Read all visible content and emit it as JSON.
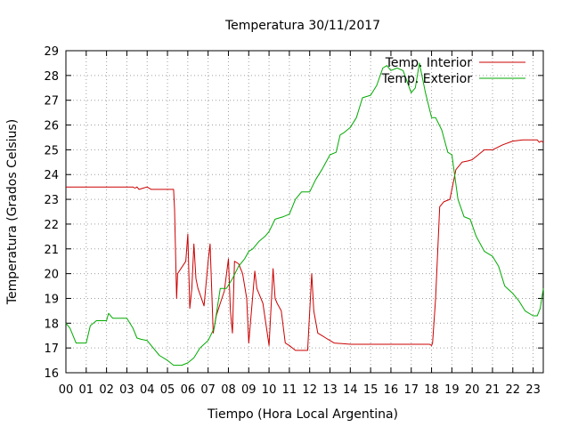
{
  "chart_data": {
    "type": "line",
    "title": "Temperatura 30/11/2017",
    "xlabel": "Tiempo (Hora Local Argentina)",
    "ylabel": "Temperatura (Grados Celsius)",
    "xlim": [
      0,
      23.5
    ],
    "ylim": [
      16,
      29
    ],
    "x_ticks": [
      "00",
      "01",
      "02",
      "03",
      "04",
      "05",
      "06",
      "07",
      "08",
      "09",
      "10",
      "11",
      "12",
      "13",
      "14",
      "15",
      "16",
      "17",
      "18",
      "19",
      "20",
      "21",
      "22",
      "23"
    ],
    "y_ticks": [
      16,
      17,
      18,
      19,
      20,
      21,
      22,
      23,
      24,
      25,
      26,
      27,
      28,
      29
    ],
    "grid": true,
    "legend_position": "top-right",
    "series": [
      {
        "name": "Temp. Interior",
        "color": "#cc0000",
        "x": [
          0,
          3.3,
          3.4,
          3.5,
          3.6,
          3.8,
          4.0,
          4.2,
          4.5,
          5.3,
          5.35,
          5.45,
          5.5,
          5.9,
          6.0,
          6.1,
          6.2,
          6.3,
          6.4,
          6.5,
          6.8,
          7.0,
          7.1,
          7.25,
          7.4,
          7.6,
          7.8,
          8.0,
          8.1,
          8.2,
          8.3,
          8.5,
          8.7,
          8.9,
          9.0,
          9.3,
          9.4,
          9.5,
          9.7,
          10.0,
          10.2,
          10.3,
          10.4,
          10.6,
          10.8,
          11.0,
          11.3,
          11.6,
          11.9,
          12.1,
          12.2,
          12.4,
          12.6,
          12.8,
          13.2,
          14.0,
          15.0,
          16.0,
          17.0,
          17.9,
          18.0,
          18.05,
          18.2,
          18.4,
          18.6,
          18.9,
          19.0,
          19.2,
          19.5,
          19.8,
          20.0,
          20.3,
          20.6,
          21.0,
          21.5,
          22.0,
          22.5,
          23.0,
          23.2,
          23.3,
          23.4,
          23.5
        ],
        "values": [
          23.5,
          23.5,
          23.45,
          23.5,
          23.4,
          23.45,
          23.5,
          23.4,
          23.4,
          23.4,
          22.6,
          19.0,
          20.0,
          20.5,
          21.6,
          18.6,
          19.4,
          21.2,
          19.8,
          19.4,
          18.7,
          20.5,
          21.2,
          17.6,
          18.3,
          18.8,
          19.3,
          20.6,
          18.5,
          17.6,
          20.5,
          20.4,
          20.0,
          19.0,
          17.2,
          20.1,
          19.4,
          19.2,
          18.8,
          17.1,
          20.2,
          19.0,
          18.8,
          18.5,
          17.2,
          17.1,
          16.9,
          16.9,
          16.9,
          20.0,
          18.5,
          17.6,
          17.5,
          17.4,
          17.2,
          17.15,
          17.15,
          17.15,
          17.15,
          17.15,
          17.1,
          17.2,
          19.0,
          22.7,
          22.9,
          23.0,
          23.4,
          24.2,
          24.5,
          24.55,
          24.6,
          24.8,
          25.0,
          25.0,
          25.2,
          25.35,
          25.4,
          25.4,
          25.4,
          25.3,
          25.35,
          25.3
        ]
      },
      {
        "name": "Temp. Exterior",
        "color": "#00aa00",
        "x": [
          0,
          0.2,
          0.5,
          1.0,
          1.2,
          1.5,
          2.0,
          2.1,
          2.3,
          2.7,
          3.0,
          3.3,
          3.5,
          3.7,
          4.0,
          4.3,
          4.6,
          5.0,
          5.3,
          5.7,
          6.0,
          6.3,
          6.6,
          7.0,
          7.3,
          7.6,
          7.9,
          8.2,
          8.5,
          8.8,
          9.0,
          9.2,
          9.5,
          9.8,
          10.0,
          10.3,
          10.7,
          11.0,
          11.3,
          11.6,
          12.0,
          12.3,
          12.6,
          13.0,
          13.3,
          13.5,
          13.7,
          14.0,
          14.3,
          14.6,
          15.0,
          15.3,
          15.6,
          15.8,
          16.0,
          16.3,
          16.6,
          17.0,
          17.2,
          17.4,
          17.7,
          18.0,
          18.2,
          18.5,
          18.8,
          19.0,
          19.3,
          19.6,
          19.9,
          20.2,
          20.6,
          21.0,
          21.3,
          21.6,
          22.0,
          22.3,
          22.6,
          23.0,
          23.2,
          23.35,
          23.5
        ],
        "values": [
          18.0,
          17.8,
          17.2,
          17.2,
          17.9,
          18.1,
          18.1,
          18.4,
          18.2,
          18.2,
          18.2,
          17.8,
          17.4,
          17.35,
          17.3,
          17.0,
          16.7,
          16.5,
          16.3,
          16.3,
          16.4,
          16.6,
          17.0,
          17.3,
          17.8,
          19.4,
          19.4,
          19.8,
          20.3,
          20.6,
          20.9,
          21.0,
          21.3,
          21.5,
          21.7,
          22.2,
          22.3,
          22.4,
          23.0,
          23.3,
          23.3,
          23.8,
          24.2,
          24.8,
          24.9,
          25.6,
          25.7,
          25.9,
          26.3,
          27.1,
          27.2,
          27.6,
          28.3,
          28.4,
          28.2,
          28.3,
          28.2,
          27.3,
          27.5,
          28.5,
          27.3,
          26.3,
          26.3,
          25.8,
          24.9,
          24.8,
          23.0,
          22.3,
          22.2,
          21.5,
          20.9,
          20.7,
          20.3,
          19.5,
          19.2,
          18.9,
          18.5,
          18.3,
          18.3,
          18.6,
          19.4
        ]
      }
    ]
  }
}
